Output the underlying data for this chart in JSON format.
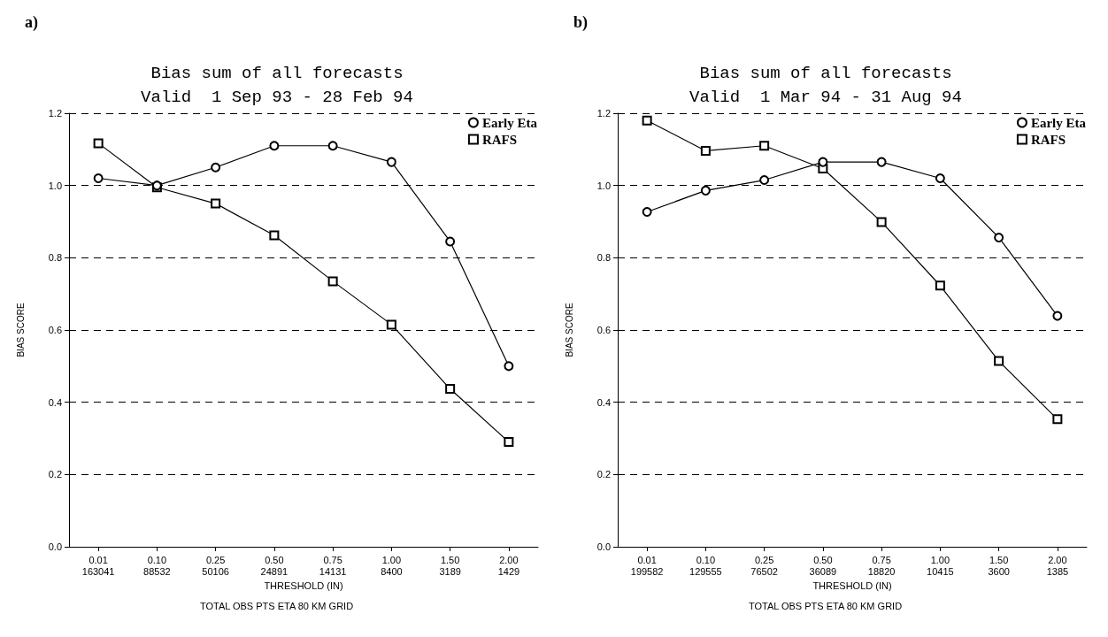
{
  "chart_data": [
    {
      "type": "line",
      "title": "Bias sum of all forecasts",
      "subtitle": "Valid  1 Sep 93 - 28 Feb 94",
      "xlabel": "THRESHOLD (IN)",
      "ylabel": "BIAS SCORE",
      "annotations": [
        "a)",
        "TOTAL OBS PTS ETA 80 KM GRID"
      ],
      "categories": [
        "0.01\n163041",
        "0.10\n88532",
        "0.25\n50106",
        "0.50\n24891",
        "0.75\n14131",
        "1.00\n8400",
        "1.50\n3189",
        "2.00\n1429"
      ],
      "series": [
        {
          "name": "Early Eta",
          "color": "#000000",
          "marker": "circle",
          "values": [
            1.02,
            1.0,
            1.05,
            1.11,
            1.11,
            1.065,
            0.845,
            0.5
          ]
        },
        {
          "name": "RAFS",
          "color": "#000000",
          "marker": "square",
          "values": [
            1.117,
            0.995,
            0.95,
            0.862,
            0.735,
            0.615,
            0.437,
            0.29
          ]
        }
      ],
      "ylim": [
        0,
        1.2
      ],
      "yticks": [
        {
          "value": 0,
          "label": "0.0"
        },
        {
          "value": 0.2,
          "label": "0.2"
        },
        {
          "value": 0.4,
          "label": "0.4"
        },
        {
          "value": 0.6,
          "label": "0.6"
        },
        {
          "value": 0.8,
          "label": "0.8"
        },
        {
          "value": 1,
          "label": "1.0"
        },
        {
          "value": 1.2,
          "label": "1.2"
        }
      ],
      "grid": "y",
      "legend": "top right",
      "line_style": "solid"
    },
    {
      "type": "line",
      "title": "Bias sum of all forecasts",
      "subtitle": "Valid  1 Mar 94 - 31 Aug 94",
      "xlabel": "THRESHOLD (IN)",
      "ylabel": "BIAS SCORE",
      "annotations": [
        "b)",
        "TOTAL OBS PTS ETA 80 KM GRID"
      ],
      "categories": [
        "0.01\n199582",
        "0.10\n129555",
        "0.25\n76502",
        "0.50\n36089",
        "0.75\n18820",
        "1.00\n10415",
        "1.50\n3600",
        "2.00\n1385"
      ],
      "series": [
        {
          "name": "Early Eta",
          "color": "#000000",
          "marker": "circle",
          "values": [
            0.927,
            0.986,
            1.015,
            1.065,
            1.065,
            1.02,
            0.856,
            0.639
          ]
        },
        {
          "name": "RAFS",
          "color": "#000000",
          "marker": "square",
          "values": [
            1.18,
            1.096,
            1.11,
            1.047,
            0.899,
            0.723,
            0.514,
            0.353
          ]
        }
      ],
      "ylim": [
        0,
        1.2
      ],
      "yticks": [
        {
          "value": 0,
          "label": "0.0"
        },
        {
          "value": 0.2,
          "label": "0.2"
        },
        {
          "value": 0.4,
          "label": "0.4"
        },
        {
          "value": 0.6,
          "label": "0.6"
        },
        {
          "value": 0.8,
          "label": "0.8"
        },
        {
          "value": 1,
          "label": "1.0"
        },
        {
          "value": 1.2,
          "label": "1.2"
        }
      ],
      "grid": "y",
      "legend": "top right",
      "line_style": "solid"
    }
  ]
}
